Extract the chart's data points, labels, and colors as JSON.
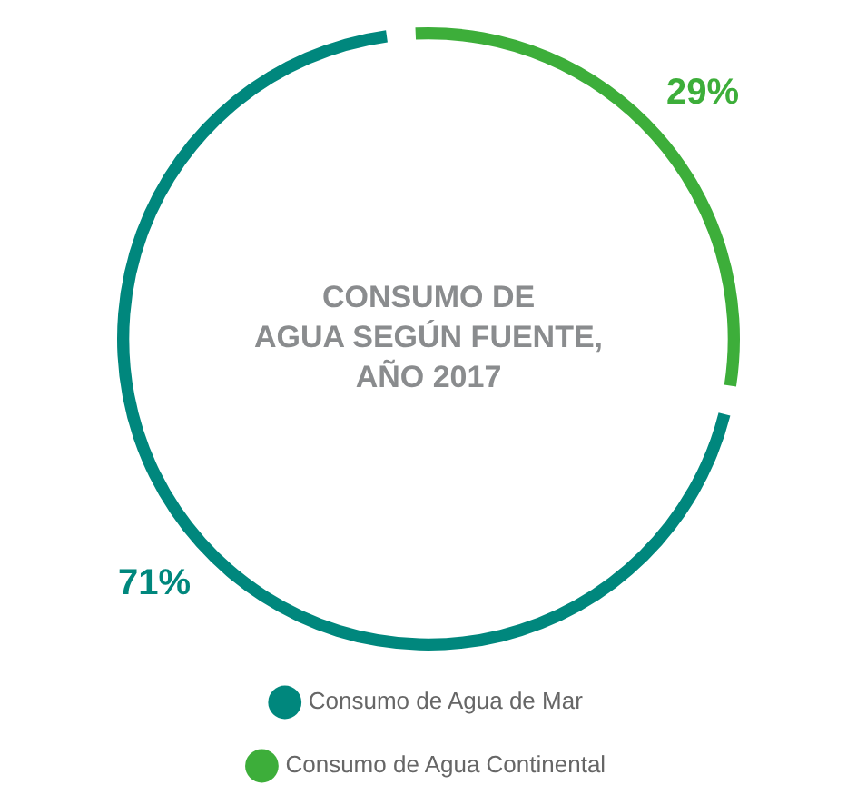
{
  "chart_data": {
    "type": "donut",
    "title": "CONSUMO DE\nAGUA SEGÚN FUENTE,\nAÑO 2017",
    "categories": [
      "Consumo de Agua de Mar",
      "Consumo de Agua Continental"
    ],
    "values": [
      71,
      29
    ],
    "colors": [
      "#00877d",
      "#3dae3a"
    ],
    "value_labels": [
      "71%",
      "29%"
    ],
    "legend": "bottom"
  }
}
